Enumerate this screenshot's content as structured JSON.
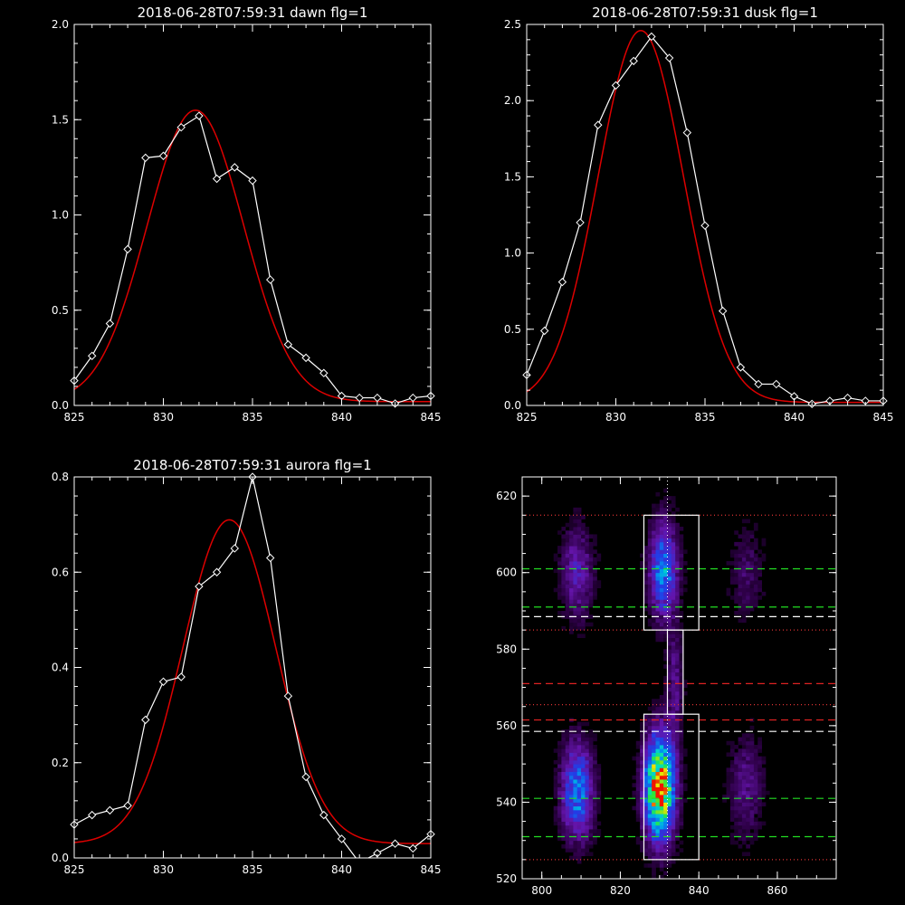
{
  "colors": {
    "background": "#000000",
    "axes": "#ffffff",
    "data": "#ffffff",
    "fit": "#dd0000",
    "green": "#22dd22",
    "red_line": "#dd2222",
    "white_dash": "#ffffff"
  },
  "chart_data": [
    {
      "type": "line",
      "title": "2018-06-28T07:59:31 dawn flg=1",
      "xlim": [
        825,
        845
      ],
      "ylim": [
        0,
        2.0
      ],
      "xticks": [
        "825",
        "830",
        "835",
        "840",
        "845"
      ],
      "yticks": [
        "0.0",
        "0.5",
        "1.0",
        "1.5",
        "2.0"
      ],
      "x": [
        825,
        826,
        827,
        828,
        829,
        830,
        831,
        832,
        833,
        834,
        835,
        836,
        837,
        838,
        839,
        840,
        841,
        842,
        843,
        844,
        845
      ],
      "y": [
        0.13,
        0.26,
        0.43,
        0.82,
        1.3,
        1.31,
        1.46,
        1.52,
        1.19,
        1.25,
        1.18,
        0.66,
        0.32,
        0.25,
        0.17,
        0.05,
        0.04,
        0.04,
        0.01,
        0.04,
        0.05
      ],
      "fit": {
        "amplitude": 1.53,
        "center": 831.8,
        "sigma": 2.7,
        "baseline": 0.02
      }
    },
    {
      "type": "line",
      "title": "2018-06-28T07:59:31 dusk flg=1",
      "xlim": [
        825,
        845
      ],
      "ylim": [
        0,
        2.5
      ],
      "xticks": [
        "825",
        "830",
        "835",
        "840",
        "845"
      ],
      "yticks": [
        "0.0",
        "0.5",
        "1.0",
        "1.5",
        "2.0",
        "2.5"
      ],
      "x": [
        825,
        826,
        827,
        828,
        829,
        830,
        831,
        832,
        833,
        834,
        835,
        836,
        837,
        838,
        839,
        840,
        841,
        842,
        843,
        844,
        845
      ],
      "y": [
        0.2,
        0.49,
        0.81,
        1.2,
        1.84,
        2.1,
        2.26,
        2.42,
        2.28,
        1.79,
        1.18,
        0.62,
        0.25,
        0.14,
        0.14,
        0.06,
        0.01,
        0.03,
        0.05,
        0.03,
        0.03
      ],
      "fit": {
        "amplitude": 2.44,
        "center": 831.4,
        "sigma": 2.4,
        "baseline": 0.02
      }
    },
    {
      "type": "line",
      "title": "2018-06-28T07:59:31 aurora flg=1",
      "xlim": [
        825,
        845
      ],
      "ylim": [
        0,
        0.8
      ],
      "xticks": [
        "825",
        "830",
        "835",
        "840",
        "845"
      ],
      "yticks": [
        "0.0",
        "0.2",
        "0.4",
        "0.6",
        "0.8"
      ],
      "x": [
        825,
        826,
        827,
        828,
        829,
        830,
        831,
        832,
        833,
        834,
        835,
        836,
        837,
        838,
        839,
        840,
        841,
        842,
        843,
        844,
        845
      ],
      "y": [
        0.07,
        0.09,
        0.1,
        0.11,
        0.29,
        0.37,
        0.38,
        0.57,
        0.6,
        0.65,
        0.8,
        0.63,
        0.34,
        0.17,
        0.09,
        0.04,
        -0.01,
        0.01,
        0.03,
        0.02,
        0.05
      ],
      "fit": {
        "amplitude": 0.68,
        "center": 833.7,
        "sigma": 2.6,
        "baseline": 0.03
      }
    },
    {
      "type": "heatmap",
      "title": "",
      "xlim": [
        795,
        875
      ],
      "ylim": [
        520,
        625
      ],
      "xticks": [
        "800",
        "820",
        "840",
        "860"
      ],
      "yticks": [
        "520",
        "540",
        "560",
        "580",
        "600",
        "620"
      ],
      "blobs": [
        {
          "x": 830,
          "y": 544,
          "sx": 2.8,
          "sy": 10,
          "amp": 1.0
        },
        {
          "x": 831,
          "y": 601,
          "sx": 2.6,
          "sy": 9,
          "amp": 0.55
        },
        {
          "x": 809,
          "y": 543,
          "sx": 3.0,
          "sy": 9,
          "amp": 0.55
        },
        {
          "x": 809,
          "y": 600,
          "sx": 3.0,
          "sy": 9,
          "amp": 0.3
        },
        {
          "x": 852,
          "y": 544,
          "sx": 3.2,
          "sy": 10,
          "amp": 0.22
        },
        {
          "x": 852,
          "y": 600,
          "sx": 3.2,
          "sy": 9,
          "amp": 0.16
        },
        {
          "x": 834,
          "y": 572,
          "sx": 1.5,
          "sy": 10,
          "amp": 0.22
        }
      ],
      "boxes": [
        {
          "x0": 826,
          "x1": 840,
          "y0": 585,
          "y1": 615
        },
        {
          "x0": 826,
          "x1": 840,
          "y0": 525,
          "y1": 563
        },
        {
          "x0": 832,
          "x1": 836,
          "y0": 563,
          "y1": 585
        }
      ],
      "vline_dotted": 832,
      "hlines": [
        {
          "y": 615,
          "style": "dotted",
          "color": "#dd3333"
        },
        {
          "y": 601,
          "style": "dashed",
          "color": "#22dd22"
        },
        {
          "y": 591,
          "style": "dashed",
          "color": "#22dd22"
        },
        {
          "y": 588.5,
          "style": "dashed",
          "color": "#ffffff"
        },
        {
          "y": 585,
          "style": "dotted",
          "color": "#dd3333"
        },
        {
          "y": 571,
          "style": "dashed",
          "color": "#dd2222"
        },
        {
          "y": 565.5,
          "style": "dotted",
          "color": "#dd3333"
        },
        {
          "y": 561.5,
          "style": "dashed",
          "color": "#dd2222"
        },
        {
          "y": 558.5,
          "style": "dashed",
          "color": "#ffffff"
        },
        {
          "y": 541,
          "style": "dashed",
          "color": "#22dd22"
        },
        {
          "y": 531,
          "style": "dashed",
          "color": "#22dd22"
        },
        {
          "y": 525,
          "style": "dotted",
          "color": "#dd3333"
        }
      ]
    }
  ]
}
